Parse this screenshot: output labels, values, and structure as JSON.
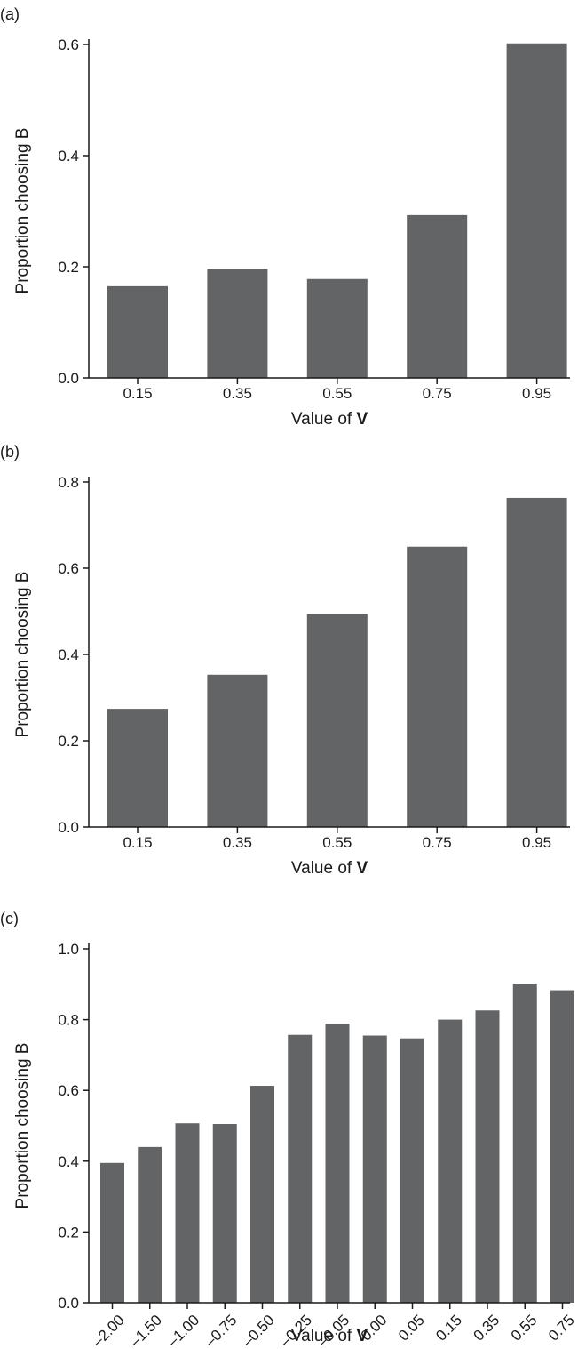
{
  "colors": {
    "bar": "#636466",
    "axis": "#1a1a1a"
  },
  "chart_data": [
    {
      "type": "bar",
      "panel_label": "(a)",
      "categories": [
        "0.15",
        "0.35",
        "0.55",
        "0.75",
        "0.95"
      ],
      "values": [
        0.165,
        0.196,
        0.178,
        0.293,
        0.602
      ],
      "yticks": [
        "0.0",
        "0.2",
        "0.4",
        "0.6"
      ],
      "ylim": [
        0,
        0.6
      ],
      "ylabel": "Proportion choosing B",
      "xlabel_prefix": "Value of ",
      "xlabel_var": "V",
      "grid": false
    },
    {
      "type": "bar",
      "panel_label": "(b)",
      "categories": [
        "0.15",
        "0.35",
        "0.55",
        "0.75",
        "0.95"
      ],
      "values": [
        0.274,
        0.353,
        0.494,
        0.65,
        0.763
      ],
      "yticks": [
        "0.0",
        "0.2",
        "0.4",
        "0.6",
        "0.8"
      ],
      "ylim": [
        0,
        0.8
      ],
      "ylabel": "Proportion choosing B",
      "xlabel_prefix": "Value of ",
      "xlabel_var": "V",
      "grid": false
    },
    {
      "type": "bar",
      "panel_label": "(c)",
      "categories": [
        "–2.00",
        "–1.50",
        "–1.00",
        "–0.75",
        "–0.50",
        "–0.25",
        "–0.05",
        "0.00",
        "0.05",
        "0.15",
        "0.35",
        "0.55",
        "0.75"
      ],
      "values": [
        0.395,
        0.44,
        0.507,
        0.505,
        0.613,
        0.757,
        0.789,
        0.755,
        0.747,
        0.8,
        0.826,
        0.902,
        0.883
      ],
      "yticks": [
        "0.0",
        "0.2",
        "0.4",
        "0.6",
        "0.8",
        "1.0"
      ],
      "ylim": [
        0,
        1.0
      ],
      "ylabel": "Proportion choosing B",
      "xlabel_prefix": "Value of ",
      "xlabel_var": "V",
      "grid": false
    }
  ]
}
